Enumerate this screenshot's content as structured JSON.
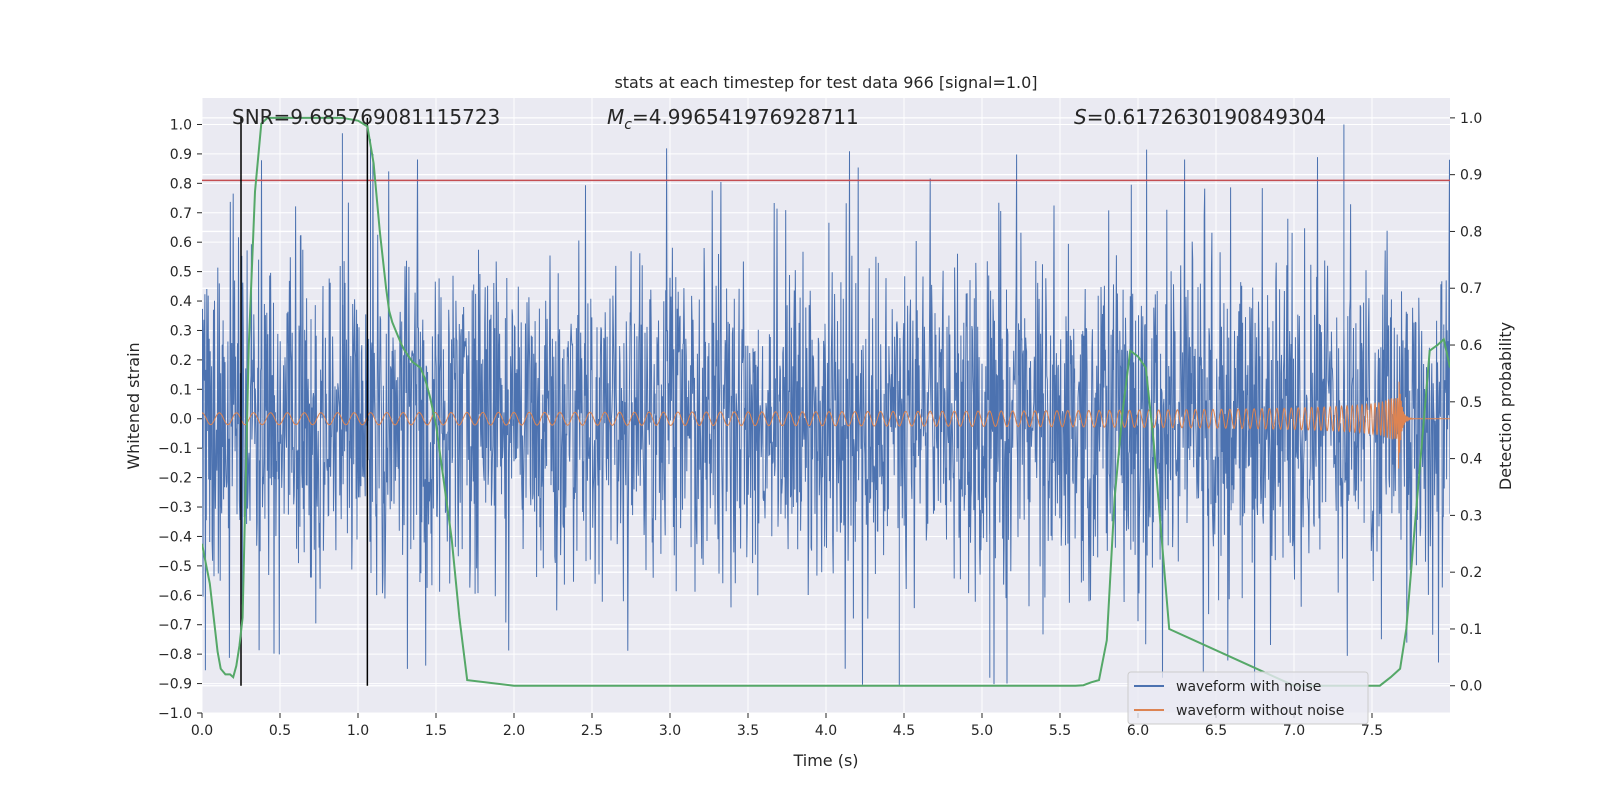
{
  "chart_data": {
    "type": "line",
    "title": "stats at each timestep for test data 966 [signal=1.0]",
    "xlabel": "Time (s)",
    "ylabel": "Whitened strain",
    "ylabel_right": "Detection probability",
    "xlim": [
      0.0,
      8.0
    ],
    "ylim": [
      -1.0,
      1.09
    ],
    "ylim_right": [
      -0.048,
      1.035
    ],
    "x_ticks": [
      0.0,
      0.5,
      1.0,
      1.5,
      2.0,
      2.5,
      3.0,
      3.5,
      4.0,
      4.5,
      5.0,
      5.5,
      6.0,
      6.5,
      7.0,
      7.5
    ],
    "x_tick_labels": [
      "0.0",
      "0.5",
      "1.0",
      "1.5",
      "2.0",
      "2.5",
      "3.0",
      "3.5",
      "4.0",
      "4.5",
      "5.0",
      "5.5",
      "6.0",
      "6.5",
      "7.0",
      "7.5"
    ],
    "y_ticks": [
      -1.0,
      -0.9,
      -0.8,
      -0.7,
      -0.6,
      -0.5,
      -0.4,
      -0.3,
      -0.2,
      -0.1,
      0.0,
      0.1,
      0.2,
      0.3,
      0.4,
      0.5,
      0.6,
      0.7,
      0.8,
      0.9,
      1.0
    ],
    "y_tick_labels": [
      "−1.0",
      "−0.9",
      "−0.8",
      "−0.7",
      "−0.6",
      "−0.5",
      "−0.4",
      "−0.3",
      "−0.2",
      "−0.1",
      "0.0",
      "0.1",
      "0.2",
      "0.3",
      "0.4",
      "0.5",
      "0.6",
      "0.7",
      "0.8",
      "0.9",
      "1.0"
    ],
    "y2_ticks": [
      0.0,
      0.1,
      0.2,
      0.3,
      0.4,
      0.5,
      0.6,
      0.7,
      0.8,
      0.9,
      1.0
    ],
    "y2_tick_labels": [
      "0.0",
      "0.1",
      "0.2",
      "0.3",
      "0.4",
      "0.5",
      "0.6",
      "0.7",
      "0.8",
      "0.9",
      "1.0"
    ],
    "annotations": {
      "snr": "SNR=9.685769081115723",
      "mc_symbol": "M",
      "mc_subscript": "c",
      "mc_value": "=4.996541976928711",
      "s_symbol": "S",
      "s_value": "=0.6172630190849304"
    },
    "threshold_line": {
      "y": 0.81,
      "color": "#c44e52"
    },
    "vertical_lines": [
      0.25,
      1.06
    ],
    "series": [
      {
        "name": "waveform with noise",
        "color": "#4c72b0",
        "approx_envelope": {
          "typical_amplitude": 0.45,
          "max": 1.0,
          "min": -0.91
        }
      },
      {
        "name": "waveform without noise",
        "color": "#dd8452",
        "chirp": {
          "t_start": 0.0,
          "t_merger": 7.67,
          "start_amplitude": 0.02,
          "peak_amplitude": 0.18,
          "start_freq_hz": 9
        }
      },
      {
        "name": "detection probability",
        "color": "#55a868",
        "axis": "right",
        "x": [
          0.0,
          0.05,
          0.1,
          0.12,
          0.15,
          0.18,
          0.2,
          0.22,
          0.24,
          0.26,
          0.3,
          0.34,
          0.38,
          0.42,
          0.5,
          0.7,
          0.9,
          1.0,
          1.06,
          1.1,
          1.14,
          1.18,
          1.2,
          1.22,
          1.25,
          1.28,
          1.3,
          1.35,
          1.4,
          1.43,
          1.46,
          1.5,
          1.55,
          1.6,
          1.65,
          1.7,
          2.0,
          3.0,
          4.0,
          5.0,
          5.5,
          5.6,
          5.65,
          5.7,
          5.75,
          5.8,
          5.85,
          5.9,
          5.95,
          6.0,
          6.05,
          6.1,
          6.2,
          7.0,
          7.3,
          7.45,
          7.55,
          7.62,
          7.68,
          7.72,
          7.78,
          7.83,
          7.87,
          7.92,
          7.96,
          8.0
        ],
        "y": [
          0.25,
          0.18,
          0.06,
          0.03,
          0.02,
          0.02,
          0.015,
          0.035,
          0.07,
          0.12,
          0.6,
          0.87,
          0.99,
          1.0,
          1.0,
          1.0,
          1.0,
          0.995,
          0.985,
          0.92,
          0.8,
          0.7,
          0.66,
          0.64,
          0.62,
          0.6,
          0.59,
          0.57,
          0.56,
          0.54,
          0.51,
          0.46,
          0.36,
          0.26,
          0.12,
          0.01,
          0.0,
          0.0,
          0.0,
          0.0,
          0.0,
          0.0,
          0.001,
          0.006,
          0.01,
          0.08,
          0.33,
          0.48,
          0.59,
          0.58,
          0.56,
          0.43,
          0.1,
          0.0,
          0.0,
          0.0,
          0.0,
          0.015,
          0.03,
          0.1,
          0.3,
          0.46,
          0.59,
          0.6,
          0.61,
          0.56
        ]
      }
    ],
    "legend": {
      "position": "lower-right",
      "entries": [
        {
          "label": "waveform with noise",
          "color": "#4c72b0"
        },
        {
          "label": "waveform without noise",
          "color": "#dd8452"
        }
      ]
    },
    "grid": true
  },
  "colors": {
    "axes_bg": "#eaeaf2",
    "grid": "#ffffff",
    "black_lines": "#000000"
  }
}
